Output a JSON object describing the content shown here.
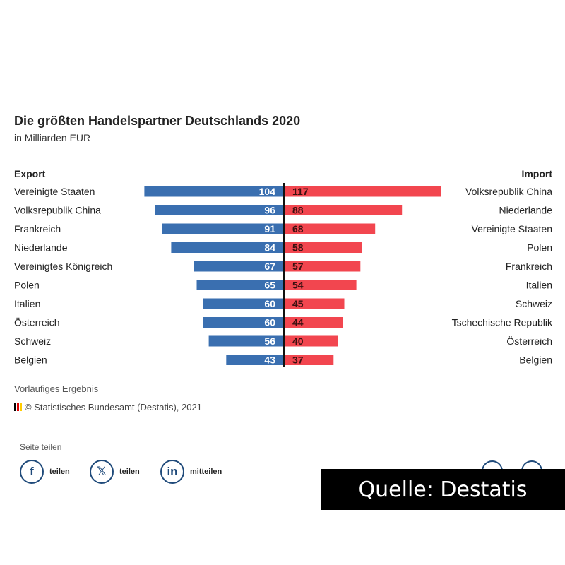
{
  "chart_data": {
    "type": "bar",
    "title": "Die größten Handelspartner Deutschlands 2020",
    "subtitle": "in Milliarden EUR",
    "export": {
      "heading": "Export",
      "color": "#3a6fb0",
      "categories": [
        "Vereinigte Staaten",
        "Volksrepublik China",
        "Frankreich",
        "Niederlande",
        "Vereinigtes Königreich",
        "Polen",
        "Italien",
        "Österreich",
        "Schweiz",
        "Belgien"
      ],
      "values": [
        104,
        96,
        91,
        84,
        67,
        65,
        60,
        60,
        56,
        43
      ]
    },
    "import": {
      "heading": "Import",
      "color": "#f2464f",
      "categories": [
        "Volksrepublik China",
        "Niederlande",
        "Vereinigte Staaten",
        "Polen",
        "Frankreich",
        "Italien",
        "Schweiz",
        "Tschechische Republik",
        "Österreich",
        "Belgien"
      ],
      "values": [
        117,
        88,
        68,
        58,
        57,
        54,
        45,
        44,
        40,
        37
      ]
    },
    "note": "Vorläufiges Ergebnis",
    "source": "© Statistisches Bundesamt (Destatis), 2021"
  },
  "share": {
    "title": "Seite teilen",
    "buttons": [
      {
        "icon": "facebook-icon",
        "glyph": "f",
        "label": "teilen"
      },
      {
        "icon": "x-icon",
        "glyph": "𝕏",
        "label": "teilen"
      },
      {
        "icon": "linkedin-icon",
        "glyph": "in",
        "label": "mitteilen"
      }
    ]
  },
  "overlay": "Quelle: Destatis"
}
